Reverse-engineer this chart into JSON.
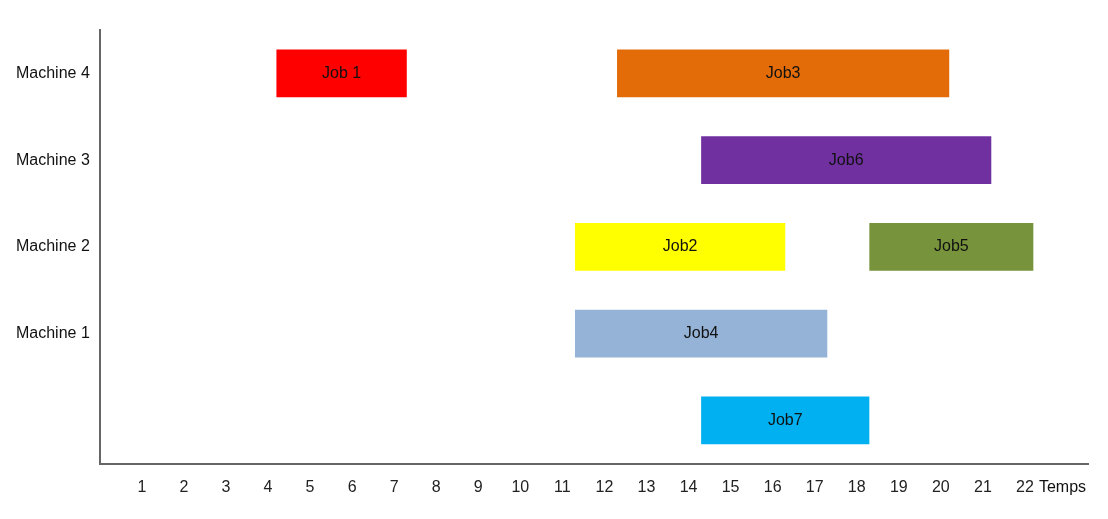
{
  "chart_data": {
    "type": "bar",
    "orientation": "horizontal",
    "categories": [
      "Machine 4",
      "Machine 3",
      "Machine 2",
      "Machine 1",
      null
    ],
    "series": [
      {
        "name": "Job 1",
        "color": "#ff0000",
        "values": [
          3.1,
          null,
          null,
          null,
          null
        ],
        "base": [
          4.2,
          null,
          null,
          null,
          null
        ]
      },
      {
        "name": "Job3",
        "color": "#e36c09",
        "values": [
          7.9,
          null,
          null,
          null,
          null
        ],
        "base": [
          12.3,
          null,
          null,
          null,
          null
        ]
      },
      {
        "name": "Job6",
        "color": "#7030a0",
        "values": [
          null,
          6.9,
          null,
          null,
          null
        ],
        "base": [
          null,
          14.3,
          null,
          null,
          null
        ]
      },
      {
        "name": "Job2",
        "color": "#ffff00",
        "values": [
          null,
          null,
          5.0,
          null,
          null
        ],
        "base": [
          null,
          null,
          11.3,
          null,
          null
        ]
      },
      {
        "name": "Job5",
        "color": "#77933c",
        "values": [
          null,
          null,
          3.9,
          null,
          null
        ],
        "base": [
          null,
          null,
          18.3,
          null,
          null
        ]
      },
      {
        "name": "Job4",
        "color": "#95b3d7",
        "values": [
          null,
          null,
          null,
          6.0,
          null
        ],
        "base": [
          null,
          null,
          null,
          11.3,
          null
        ]
      },
      {
        "name": "Job7",
        "color": "#00b0f0",
        "values": [
          null,
          null,
          null,
          null,
          4.0
        ],
        "base": [
          null,
          null,
          null,
          null,
          14.3
        ]
      }
    ],
    "xlim": [
      0,
      23.5
    ],
    "xticks": [
      1,
      2,
      3,
      4,
      5,
      6,
      7,
      8,
      9,
      10,
      11,
      12,
      13,
      14,
      15,
      16,
      17,
      18,
      19,
      20,
      21,
      22
    ],
    "xlabel": "Temps",
    "grid": false,
    "legend": false
  }
}
